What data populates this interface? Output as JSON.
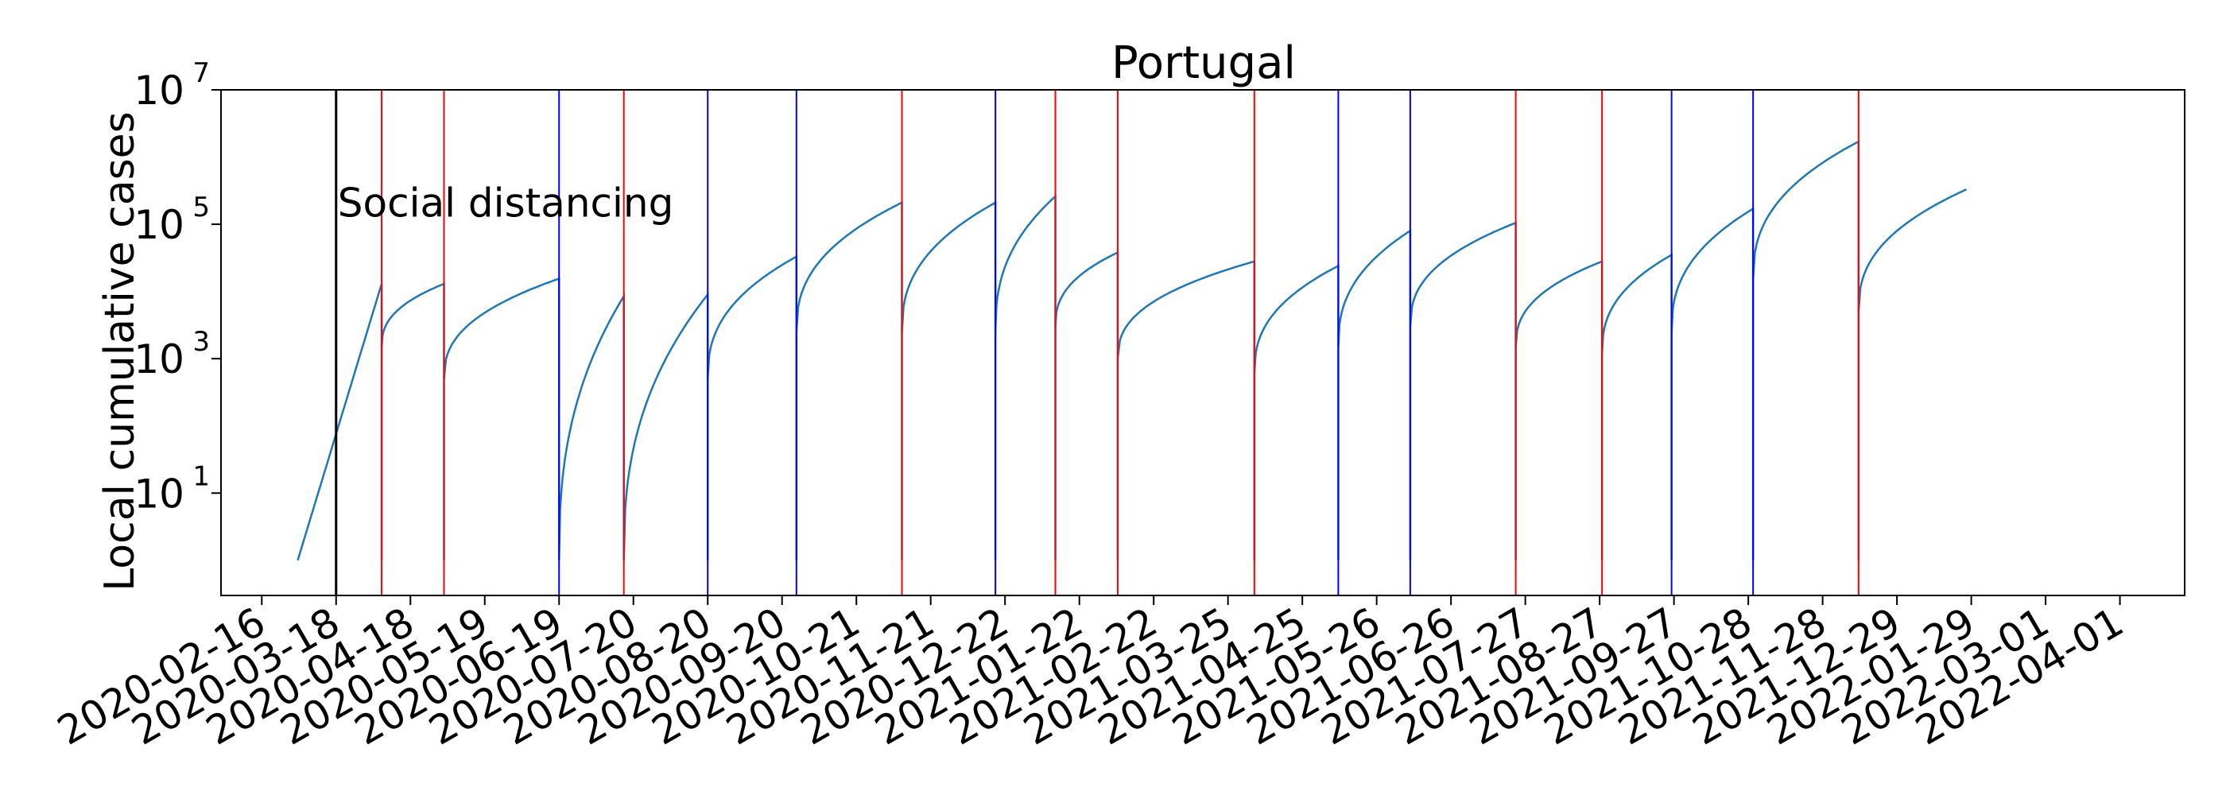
{
  "chart_data": {
    "type": "line",
    "title": "Portugal",
    "xlabel": "",
    "ylabel": "Local cumulative cases",
    "yscale": "log",
    "ylim": [
      0.3,
      10000000
    ],
    "xlim": [
      "2020-01-30",
      "2022-04-28"
    ],
    "grid": false,
    "x_ticks": [
      "2020-02-16",
      "2020-03-18",
      "2020-04-18",
      "2020-05-19",
      "2020-06-19",
      "2020-07-20",
      "2020-08-20",
      "2020-09-20",
      "2020-10-21",
      "2020-11-21",
      "2020-12-22",
      "2021-01-22",
      "2021-02-22",
      "2021-03-25",
      "2021-04-25",
      "2021-05-26",
      "2021-06-26",
      "2021-07-27",
      "2021-08-27",
      "2021-09-27",
      "2021-10-28",
      "2021-11-28",
      "2021-12-29",
      "2022-01-29",
      "2022-03-01",
      "2022-04-01"
    ],
    "y_ticks": [
      {
        "value": 10,
        "base": "10",
        "exp": "1"
      },
      {
        "value": 1000,
        "base": "10",
        "exp": "3"
      },
      {
        "value": 100000,
        "base": "10",
        "exp": "5"
      },
      {
        "value": 10000000,
        "base": "10",
        "exp": "7"
      }
    ],
    "annotation": {
      "text": "Social distancing",
      "date": "2020-03-18",
      "y": 200000
    },
    "colors": {
      "series": "#1f77b4",
      "red_line": "#ff0000",
      "blue_line": "#0000ff",
      "black_line": "#000000"
    },
    "vertical_lines": [
      {
        "date": "2020-03-18",
        "color": "black"
      },
      {
        "date": "2020-04-06",
        "color": "red"
      },
      {
        "date": "2020-05-02",
        "color": "red"
      },
      {
        "date": "2020-06-19",
        "color": "blue"
      },
      {
        "date": "2020-07-16",
        "color": "red"
      },
      {
        "date": "2020-08-20",
        "color": "blue"
      },
      {
        "date": "2020-09-26",
        "color": "blue"
      },
      {
        "date": "2020-11-09",
        "color": "red"
      },
      {
        "date": "2020-12-18",
        "color": "blue"
      },
      {
        "date": "2021-01-12",
        "color": "red"
      },
      {
        "date": "2021-02-07",
        "color": "red"
      },
      {
        "date": "2021-04-05",
        "color": "red"
      },
      {
        "date": "2021-05-10",
        "color": "blue"
      },
      {
        "date": "2021-06-09",
        "color": "blue"
      },
      {
        "date": "2021-07-23",
        "color": "red"
      },
      {
        "date": "2021-08-28",
        "color": "red"
      },
      {
        "date": "2021-09-26",
        "color": "blue"
      },
      {
        "date": "2021-10-30",
        "color": "blue"
      },
      {
        "date": "2021-12-13",
        "color": "red"
      }
    ],
    "segments": [
      {
        "start": "2020-03-02",
        "end": "2020-04-06",
        "v0": 1,
        "v1": 13000,
        "shape": "ramp"
      },
      {
        "start": "2020-04-06",
        "end": "2020-05-02",
        "v0": 1500,
        "v1": 13000,
        "shape": "curve"
      },
      {
        "start": "2020-05-02",
        "end": "2020-06-19",
        "v0": 500,
        "v1": 15500,
        "shape": "curve"
      },
      {
        "start": "2020-06-19",
        "end": "2020-07-16",
        "v0": 1,
        "v1": 8500,
        "shape": "curve"
      },
      {
        "start": "2020-07-16",
        "end": "2020-08-20",
        "v0": 1,
        "v1": 9000,
        "shape": "curve"
      },
      {
        "start": "2020-08-20",
        "end": "2020-09-26",
        "v0": 500,
        "v1": 33000,
        "shape": "curve"
      },
      {
        "start": "2020-09-26",
        "end": "2020-11-09",
        "v0": 2500,
        "v1": 210000,
        "shape": "curve"
      },
      {
        "start": "2020-11-09",
        "end": "2020-12-18",
        "v0": 2500,
        "v1": 210000,
        "shape": "curve"
      },
      {
        "start": "2020-12-18",
        "end": "2021-01-12",
        "v0": 2500,
        "v1": 260000,
        "shape": "curve"
      },
      {
        "start": "2021-01-12",
        "end": "2021-02-07",
        "v0": 3000,
        "v1": 38000,
        "shape": "curve"
      },
      {
        "start": "2021-02-07",
        "end": "2021-04-05",
        "v0": 1000,
        "v1": 28000,
        "shape": "curve"
      },
      {
        "start": "2021-04-05",
        "end": "2021-05-10",
        "v0": 600,
        "v1": 24000,
        "shape": "curve"
      },
      {
        "start": "2021-05-10",
        "end": "2021-06-09",
        "v0": 1500,
        "v1": 80000,
        "shape": "curve"
      },
      {
        "start": "2021-06-09",
        "end": "2021-07-23",
        "v0": 3000,
        "v1": 105000,
        "shape": "curve"
      },
      {
        "start": "2021-07-23",
        "end": "2021-08-28",
        "v0": 1500,
        "v1": 28000,
        "shape": "curve"
      },
      {
        "start": "2021-08-28",
        "end": "2021-09-26",
        "v0": 1200,
        "v1": 35000,
        "shape": "curve"
      },
      {
        "start": "2021-09-26",
        "end": "2021-10-30",
        "v0": 2500,
        "v1": 170000,
        "shape": "curve"
      },
      {
        "start": "2021-10-30",
        "end": "2021-12-13",
        "v0": 15000,
        "v1": 1700000,
        "shape": "curve"
      },
      {
        "start": "2021-12-13",
        "end": "2022-01-27",
        "v0": 5000,
        "v1": 330000,
        "shape": "curve"
      }
    ]
  }
}
